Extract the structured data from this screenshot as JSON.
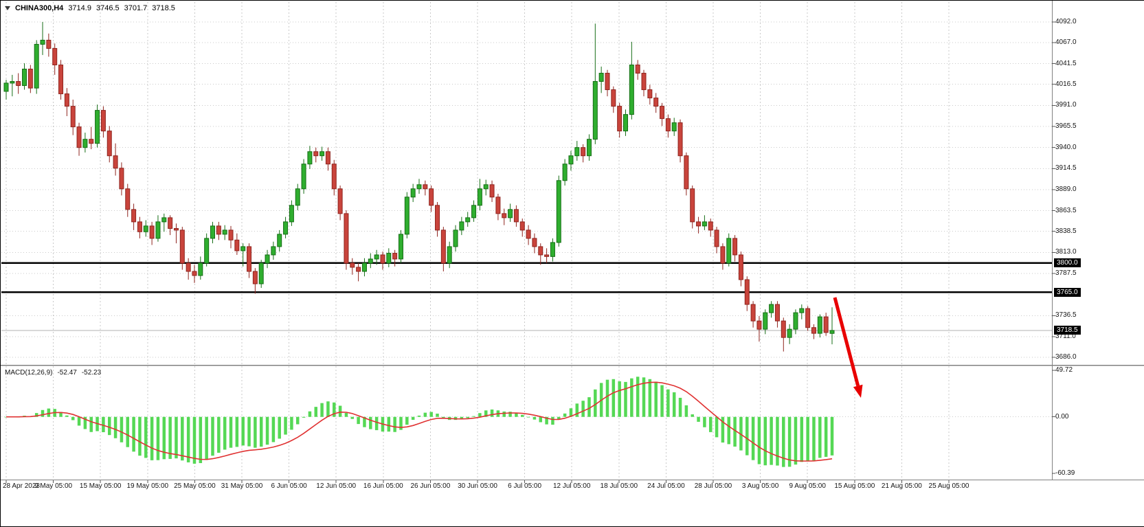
{
  "window": {
    "title": {
      "symbol_period": "CHINA300,H4",
      "open": "3714.9",
      "high": "3746.5",
      "low": "3701.7",
      "close": "3718.5"
    }
  },
  "indicator_label": {
    "name": "MACD(12,26,9)",
    "value_macd": "-52.47",
    "value_signal": "-52.23"
  },
  "price_axis": {
    "values": [
      4092.0,
      4067.0,
      4041.5,
      4016.5,
      3991.0,
      3965.5,
      3940.0,
      3914.5,
      3889.0,
      3863.5,
      3838.5,
      3813.0,
      3787.5,
      3736.5,
      3711.0,
      3686.0
    ],
    "tags": [
      {
        "text": "3800.0",
        "value": 3800.0
      },
      {
        "text": "3765.0",
        "value": 3765.0
      },
      {
        "text": "3718.5",
        "value": 3718.5
      }
    ]
  },
  "macd_axis": {
    "labels": [
      "49.72",
      "0.00",
      "-60.39"
    ],
    "values": [
      49.72,
      0.0,
      -60.39
    ]
  },
  "time_axis": {
    "labels": [
      "28 Apr 2023",
      "9 May 05:00",
      "15 May 05:00",
      "19 May 05:00",
      "25 May 05:00",
      "31 May 05:00",
      "6 Jun 05:00",
      "12 Jun 05:00",
      "16 Jun 05:00",
      "26 Jun 05:00",
      "30 Jun 05:00",
      "6 Jul 05:00",
      "12 Jul 05:00",
      "18 Jul 05:00",
      "24 Jul 05:00",
      "28 Jul 05:00",
      "3 Aug 05:00",
      "9 Aug 05:00",
      "15 Aug 05:00",
      "21 Aug 05:00",
      "25 Aug 05:00"
    ]
  },
  "colors": {
    "up": "#2fae2f",
    "up_dark": "#156d15",
    "down": "#c9443c",
    "down_dark": "#8f241e",
    "hist": "#55d855",
    "signal": "#e03131",
    "level_line": "#000000",
    "bid_line": "#b0b0b0",
    "arrow": "#e80000",
    "grid": "#c9c9c9",
    "tag_bg": "#000000",
    "tag_fg": "#ffffff",
    "background": "#ffffff"
  },
  "chart_data": {
    "type": "candlestick",
    "title": "CHINA300,H4",
    "symbol": "CHINA300",
    "timeframe": "H4",
    "x_range": [
      "28 Apr 2023",
      "25 Aug 2023 05:00"
    ],
    "main_ylim": [
      3686.0,
      4092.0
    ],
    "grid_step": 25.5,
    "last_bar": {
      "open": 3714.9,
      "high": 3746.5,
      "low": 3701.7,
      "close": 3718.5
    },
    "horizontal_levels": [
      3800.0,
      3765.0
    ],
    "bid": 3718.5,
    "candles": [
      [
        4008,
        4022,
        3998,
        4018
      ],
      [
        4018,
        4028,
        4002,
        4020
      ],
      [
        4020,
        4030,
        4005,
        4015
      ],
      [
        4015,
        4042,
        4010,
        4035
      ],
      [
        4035,
        4040,
        4006,
        4012
      ],
      [
        4012,
        4070,
        4005,
        4065
      ],
      [
        4065,
        4092,
        4052,
        4070
      ],
      [
        4070,
        4078,
        4050,
        4060
      ],
      [
        4060,
        4066,
        4028,
        4040
      ],
      [
        4040,
        4046,
        3998,
        4005
      ],
      [
        4005,
        4012,
        3978,
        3990
      ],
      [
        3990,
        3998,
        3955,
        3965
      ],
      [
        3965,
        3970,
        3930,
        3940
      ],
      [
        3940,
        3958,
        3934,
        3950
      ],
      [
        3950,
        3965,
        3938,
        3945
      ],
      [
        3945,
        3992,
        3940,
        3985
      ],
      [
        3985,
        3990,
        3952,
        3960
      ],
      [
        3960,
        3966,
        3922,
        3930
      ],
      [
        3930,
        3945,
        3906,
        3915
      ],
      [
        3915,
        3922,
        3882,
        3890
      ],
      [
        3890,
        3896,
        3856,
        3865
      ],
      [
        3865,
        3872,
        3840,
        3850
      ],
      [
        3850,
        3856,
        3830,
        3838
      ],
      [
        3838,
        3852,
        3832,
        3845
      ],
      [
        3845,
        3850,
        3822,
        3830
      ],
      [
        3830,
        3858,
        3826,
        3850
      ],
      [
        3850,
        3860,
        3838,
        3855
      ],
      [
        3855,
        3858,
        3834,
        3842
      ],
      [
        3842,
        3848,
        3824,
        3840
      ],
      [
        3840,
        3844,
        3792,
        3800
      ],
      [
        3800,
        3806,
        3780,
        3790
      ],
      [
        3790,
        3798,
        3776,
        3785
      ],
      [
        3785,
        3808,
        3780,
        3800
      ],
      [
        3800,
        3836,
        3796,
        3830
      ],
      [
        3830,
        3850,
        3824,
        3845
      ],
      [
        3845,
        3850,
        3828,
        3835
      ],
      [
        3835,
        3846,
        3828,
        3840
      ],
      [
        3840,
        3845,
        3818,
        3828
      ],
      [
        3828,
        3836,
        3810,
        3815
      ],
      [
        3815,
        3824,
        3796,
        3820
      ],
      [
        3820,
        3824,
        3782,
        3790
      ],
      [
        3790,
        3794,
        3763,
        3775
      ],
      [
        3775,
        3804,
        3770,
        3800
      ],
      [
        3800,
        3816,
        3794,
        3810
      ],
      [
        3810,
        3826,
        3804,
        3820
      ],
      [
        3820,
        3840,
        3814,
        3835
      ],
      [
        3835,
        3856,
        3830,
        3850
      ],
      [
        3850,
        3876,
        3845,
        3870
      ],
      [
        3870,
        3896,
        3864,
        3890
      ],
      [
        3890,
        3926,
        3884,
        3920
      ],
      [
        3920,
        3942,
        3914,
        3935
      ],
      [
        3935,
        3940,
        3922,
        3930
      ],
      [
        3930,
        3941,
        3924,
        3935
      ],
      [
        3935,
        3940,
        3912,
        3920
      ],
      [
        3920,
        3925,
        3882,
        3890
      ],
      [
        3890,
        3894,
        3852,
        3860
      ],
      [
        3860,
        3864,
        3792,
        3800
      ],
      [
        3800,
        3806,
        3786,
        3795
      ],
      [
        3795,
        3800,
        3778,
        3790
      ],
      [
        3790,
        3806,
        3784,
        3800
      ],
      [
        3800,
        3812,
        3794,
        3805
      ],
      [
        3805,
        3816,
        3798,
        3810
      ],
      [
        3810,
        3814,
        3792,
        3800
      ],
      [
        3800,
        3818,
        3795,
        3812
      ],
      [
        3812,
        3816,
        3796,
        3805
      ],
      [
        3805,
        3840,
        3800,
        3835
      ],
      [
        3835,
        3886,
        3830,
        3880
      ],
      [
        3880,
        3896,
        3874,
        3890
      ],
      [
        3890,
        3902,
        3884,
        3895
      ],
      [
        3895,
        3900,
        3882,
        3890
      ],
      [
        3890,
        3894,
        3862,
        3870
      ],
      [
        3870,
        3874,
        3832,
        3840
      ],
      [
        3840,
        3844,
        3790,
        3800
      ],
      [
        3800,
        3826,
        3794,
        3820
      ],
      [
        3820,
        3846,
        3814,
        3840
      ],
      [
        3840,
        3856,
        3834,
        3850
      ],
      [
        3850,
        3862,
        3844,
        3855
      ],
      [
        3855,
        3876,
        3850,
        3870
      ],
      [
        3870,
        3902,
        3864,
        3890
      ],
      [
        3890,
        3901,
        3882,
        3895
      ],
      [
        3895,
        3900,
        3874,
        3880
      ],
      [
        3880,
        3884,
        3852,
        3860
      ],
      [
        3860,
        3866,
        3846,
        3855
      ],
      [
        3855,
        3872,
        3850,
        3865
      ],
      [
        3865,
        3870,
        3844,
        3850
      ],
      [
        3850,
        3854,
        3832,
        3840
      ],
      [
        3840,
        3846,
        3822,
        3830
      ],
      [
        3830,
        3836,
        3812,
        3820
      ],
      [
        3820,
        3824,
        3798,
        3810
      ],
      [
        3810,
        3818,
        3800,
        3808
      ],
      [
        3808,
        3830,
        3802,
        3825
      ],
      [
        3825,
        3906,
        3820,
        3900
      ],
      [
        3900,
        3926,
        3894,
        3920
      ],
      [
        3920,
        3936,
        3912,
        3930
      ],
      [
        3930,
        3948,
        3924,
        3940
      ],
      [
        3940,
        3944,
        3922,
        3930
      ],
      [
        3930,
        3956,
        3924,
        3950
      ],
      [
        3950,
        4090,
        3944,
        4020
      ],
      [
        4020,
        4038,
        4006,
        4030
      ],
      [
        4030,
        4034,
        4002,
        4010
      ],
      [
        4010,
        4014,
        3982,
        3990
      ],
      [
        3990,
        3994,
        3952,
        3960
      ],
      [
        3960,
        3986,
        3954,
        3980
      ],
      [
        3980,
        4068,
        3974,
        4040
      ],
      [
        4040,
        4046,
        4022,
        4030
      ],
      [
        4030,
        4034,
        4002,
        4010
      ],
      [
        4010,
        4016,
        3992,
        4000
      ],
      [
        4000,
        4006,
        3982,
        3990
      ],
      [
        3990,
        3994,
        3966,
        3975
      ],
      [
        3975,
        3980,
        3952,
        3960
      ],
      [
        3960,
        3976,
        3954,
        3970
      ],
      [
        3970,
        3974,
        3922,
        3930
      ],
      [
        3930,
        3934,
        3882,
        3890
      ],
      [
        3890,
        3894,
        3842,
        3850
      ],
      [
        3850,
        3856,
        3836,
        3845
      ],
      [
        3845,
        3858,
        3840,
        3850
      ],
      [
        3850,
        3854,
        3832,
        3840
      ],
      [
        3840,
        3844,
        3812,
        3820
      ],
      [
        3820,
        3824,
        3792,
        3800
      ],
      [
        3800,
        3836,
        3796,
        3830
      ],
      [
        3830,
        3834,
        3802,
        3810
      ],
      [
        3810,
        3814,
        3772,
        3780
      ],
      [
        3780,
        3784,
        3742,
        3750
      ],
      [
        3750,
        3754,
        3722,
        3730
      ],
      [
        3730,
        3736,
        3705,
        3720
      ],
      [
        3720,
        3744,
        3714,
        3740
      ],
      [
        3740,
        3754,
        3734,
        3750
      ],
      [
        3750,
        3754,
        3722,
        3730
      ],
      [
        3730,
        3734,
        3693,
        3710
      ],
      [
        3710,
        3726,
        3702,
        3720
      ],
      [
        3720,
        3744,
        3714,
        3740
      ],
      [
        3740,
        3750,
        3732,
        3745
      ],
      [
        3745,
        3748,
        3718,
        3722
      ],
      [
        3722,
        3726,
        3708,
        3715
      ],
      [
        3715,
        3738,
        3710,
        3735
      ],
      [
        3735,
        3740,
        3712,
        3716
      ],
      [
        3714.9,
        3746.5,
        3701.7,
        3718.5
      ]
    ],
    "indicator": {
      "type": "MACD",
      "fast": 12,
      "slow": 26,
      "signal": 9,
      "macd_value": -52.47,
      "signal_value": -52.23,
      "axis_ticks": [
        49.72,
        0.0,
        -60.39
      ]
    },
    "annotation_arrow": {
      "direction": "down-right",
      "color": "#e80000",
      "start_price": 3758
    }
  }
}
